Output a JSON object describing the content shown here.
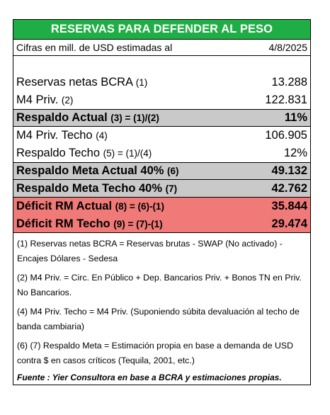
{
  "title": "RESERVAS PARA DEFENDER AL PESO",
  "subtitle": {
    "label": "Cifras en mill. de USD estimadas al",
    "date": "4/8/2025"
  },
  "rows": [
    {
      "label": "Reservas netas BCRA",
      "ref": "(1)",
      "value": "13.288"
    },
    {
      "label": "M4 Priv.",
      "ref": "(2)",
      "value": "122.831"
    },
    {
      "label": "Respaldo Actual",
      "ref": "(3) = (1)/(2)",
      "value": "11%"
    },
    {
      "label": "M4 Priv. Techo",
      "ref": "(4)",
      "value": "106.905"
    },
    {
      "label": "Respaldo Techo",
      "ref": "(5) = (1)/(4)",
      "value": "12%"
    },
    {
      "label": "Respaldo Meta Actual 40%",
      "ref": "(6)",
      "value": "49.132"
    },
    {
      "label": "Respaldo Meta Techo 40%",
      "ref": "(7)",
      "value": "42.762"
    },
    {
      "label": "Déficit RM Actual",
      "ref": "(8) = (6)-(1)",
      "value": "35.844"
    },
    {
      "label": "Déficit RM Techo",
      "ref": "(9) = (7)-(1)",
      "value": "29.474"
    }
  ],
  "notes": [
    "(1) Reservas netas BCRA = Reservas brutas - SWAP (No activado) - Encajes Dólares - Sedesa",
    "(2) M4 Priv. = Circ. En Público + Dep. Bancarios Priv. + Bonos TN en Priv. No Bancarios.",
    "(4) M4 Priv. Techo = M4 Priv.  (Suponiendo súbita devaluación al techo de banda cambiaria)",
    "(6) (7) Respaldo Meta = Estimación propia en base a demanda de USD contra $ en casos críticos (Tequila, 2001, etc.)"
  ],
  "source": "Fuente : Yier Consultora en base a BCRA y estimaciones propias.",
  "colors": {
    "title_bg": "#1fae45",
    "gray_band": "#c9c9c9",
    "red_band": "#ef7a78"
  }
}
